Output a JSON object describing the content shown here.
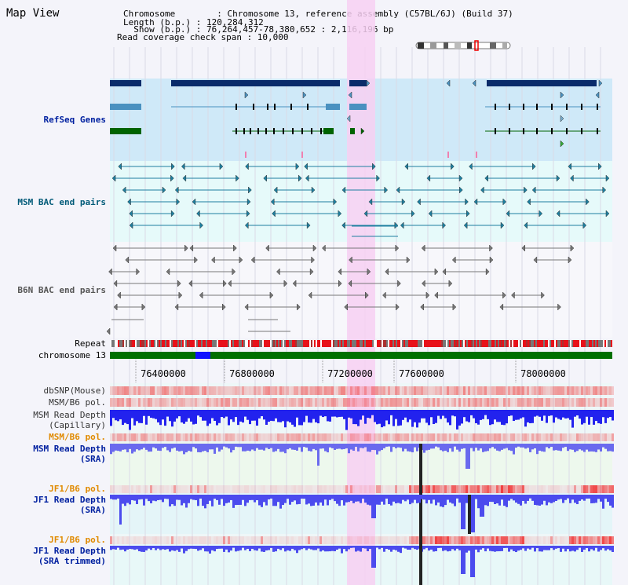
{
  "title": "Map View",
  "info": {
    "chromosome": "Chromosome        : Chromosome 13, reference assembly (C57BL/6J) (Build 37)",
    "length": "Length (b.p.) : 120,284,312",
    "show": "  Show (b.p.) : 76,264,457-78,380,652 : 2,116,196 bp",
    "span": "Read coverage check span : 10,000"
  },
  "labels": {
    "refseq": "RefSeq Genes",
    "msm_bac": "MSM BAC end pairs",
    "b6n_bac": "B6N BAC end pairs",
    "repeat": "Repeat",
    "chromosome": "chromosome 13",
    "dbsnp": "dbSNP(Mouse)",
    "msm_pol1": "MSM/B6 pol.",
    "msm_depth_cap_1": "MSM Read Depth",
    "msm_depth_cap_2": "(Capillary)",
    "msm_pol2": "MSM/B6 pol.",
    "msm_depth_sra_1": "MSM Read Depth",
    "msm_depth_sra_2": "(SRA)",
    "jf1_pol1": "JF1/B6 pol.",
    "jf1_depth_sra_1": "JF1 Read Depth",
    "jf1_depth_sra_2": "(SRA)",
    "jf1_pol2": "JF1/B6 pol.",
    "jf1_depth_trim_1": "JF1 Read Depth",
    "jf1_depth_trim_2": "(SRA trimmed)"
  },
  "axis_ticks": [
    "76400000",
    "76800000",
    "77200000",
    "77600000",
    "78000000"
  ],
  "colors": {
    "refseq_bg": "#cfe9f8",
    "msm_bg": "#e6fafa",
    "b6n_bg": "#f4f4fa",
    "highlight": "#f7d0f2",
    "chrom_green": "#007000",
    "chrom_blue": "#1010ff",
    "gene_dark": "#0a2b6a",
    "gene_mid": "#4a91c0",
    "gene_green": "#006400",
    "depth_blue": "#2222ee",
    "pol_red": "#f04040",
    "label_blue": "#0020a0",
    "label_orange": "#e08a00",
    "label_teal": "#005a78"
  }
}
